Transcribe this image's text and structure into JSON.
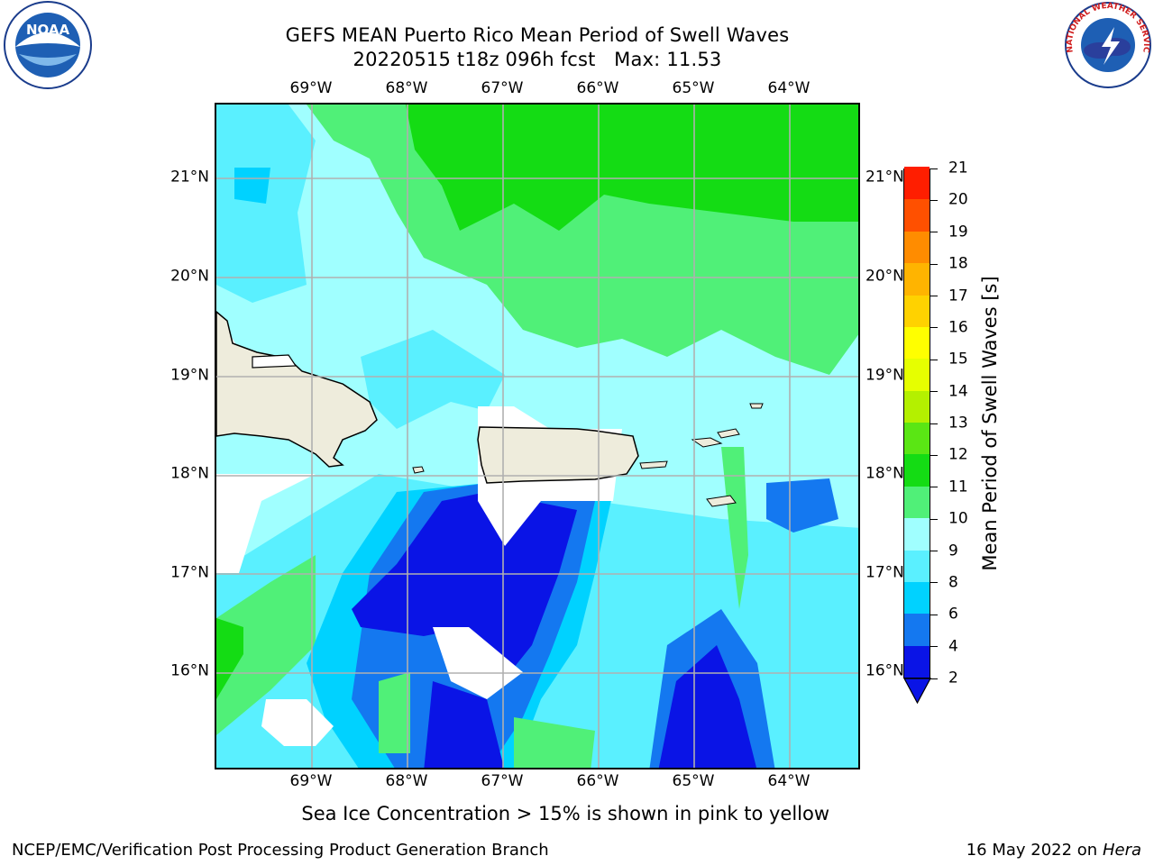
{
  "header": {
    "title_line1": "GEFS MEAN Puerto Rico Mean Period of Swell Waves",
    "title_line2": "20220515 t18z 096h fcst   Max: 11.53"
  },
  "logos": {
    "noaa_text": "NOAA",
    "nws_text": "NATIONAL WEATHER SERVICE"
  },
  "map": {
    "lon_labels": [
      "69°W",
      "68°W",
      "67°W",
      "66°W",
      "65°W",
      "64°W"
    ],
    "lat_labels": [
      "21°N",
      "20°N",
      "19°N",
      "18°N",
      "17°N",
      "16°N"
    ],
    "land_color": "#eeecdc",
    "grid_color": "#b0b0b0"
  },
  "colorbar": {
    "label": "Mean Period of Swell Waves [s]",
    "levels": [
      "2",
      "4",
      "6",
      "8",
      "9",
      "10",
      "11",
      "12",
      "13",
      "14",
      "15",
      "16",
      "17",
      "18",
      "19",
      "20",
      "21"
    ],
    "colors": [
      "#0a14e6",
      "#1478f0",
      "#00d2ff",
      "#5af0ff",
      "#a0ffff",
      "#50f078",
      "#14dc14",
      "#5ae614",
      "#b4f000",
      "#e6ff00",
      "#ffff00",
      "#ffd200",
      "#ffb400",
      "#ff8c00",
      "#ff5000",
      "#ff1e00",
      "#ff0000"
    ]
  },
  "footer": {
    "note": "Sea Ice Concentration > 15% is shown in pink to yellow",
    "credits": "NCEP/EMC/Verification Post Processing Product Generation Branch",
    "date": "16 May 2022 on",
    "host": "Hera"
  }
}
